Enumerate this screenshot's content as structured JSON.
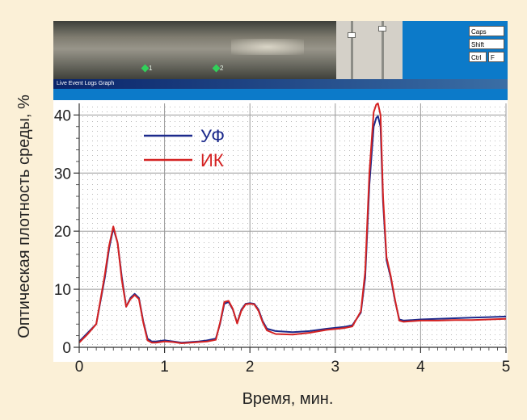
{
  "screen": {
    "window_title": "Live Event Logs Graph",
    "markers": [
      "1",
      "2"
    ],
    "keys": [
      "Caps",
      "Shift",
      "Ctrl",
      "F"
    ]
  },
  "chart_data": {
    "type": "line",
    "xlabel": "Время, мин.",
    "ylabel": "Оптическая плотность среды, %",
    "xlim": [
      0,
      5
    ],
    "ylim": [
      0,
      42
    ],
    "xticks": [
      "0",
      "1",
      "2",
      "3",
      "4",
      "5"
    ],
    "yticks": [
      "0",
      "10",
      "20",
      "30",
      "40"
    ],
    "grid": true,
    "legend_position": "top-left",
    "series": [
      {
        "name": "УФ",
        "color": "#1c2a8c",
        "x": [
          0,
          0.1,
          0.2,
          0.3,
          0.35,
          0.4,
          0.45,
          0.5,
          0.55,
          0.6,
          0.65,
          0.7,
          0.75,
          0.8,
          0.85,
          0.9,
          1.0,
          1.1,
          1.2,
          1.3,
          1.4,
          1.5,
          1.6,
          1.65,
          1.7,
          1.75,
          1.8,
          1.85,
          1.9,
          1.95,
          2.0,
          2.05,
          2.1,
          2.15,
          2.2,
          2.3,
          2.5,
          2.7,
          2.9,
          3.1,
          3.2,
          3.3,
          3.35,
          3.4,
          3.45,
          3.48,
          3.5,
          3.53,
          3.56,
          3.6,
          3.65,
          3.7,
          3.75,
          3.8,
          3.9,
          4.0,
          4.2,
          4.4,
          4.6,
          4.8,
          5.0
        ],
        "values": [
          1,
          2.5,
          4,
          12,
          17,
          20.5,
          18,
          12,
          7,
          8.5,
          9.2,
          8.5,
          4.5,
          1.5,
          1,
          1,
          1.2,
          1,
          0.8,
          0.9,
          1,
          1.2,
          1.5,
          4,
          7.5,
          7.8,
          6.5,
          4.2,
          6.5,
          7.5,
          7.6,
          7.5,
          6.5,
          4.5,
          3.2,
          2.8,
          2.6,
          2.8,
          3.2,
          3.5,
          3.8,
          6,
          12,
          28,
          38,
          39.5,
          39.8,
          38,
          25,
          15,
          12,
          8,
          4.8,
          4.6,
          4.7,
          4.8,
          4.9,
          5,
          5.1,
          5.2,
          5.3
        ]
      },
      {
        "name": "ИК",
        "color": "#d42222",
        "x": [
          0,
          0.1,
          0.2,
          0.3,
          0.35,
          0.4,
          0.45,
          0.5,
          0.55,
          0.6,
          0.65,
          0.7,
          0.75,
          0.8,
          0.85,
          0.9,
          1.0,
          1.1,
          1.2,
          1.3,
          1.4,
          1.5,
          1.6,
          1.65,
          1.7,
          1.75,
          1.8,
          1.85,
          1.9,
          1.95,
          2.0,
          2.05,
          2.1,
          2.15,
          2.2,
          2.3,
          2.5,
          2.7,
          2.9,
          3.1,
          3.2,
          3.3,
          3.35,
          3.4,
          3.45,
          3.48,
          3.5,
          3.53,
          3.56,
          3.6,
          3.65,
          3.7,
          3.75,
          3.8,
          3.9,
          4.0,
          4.2,
          4.4,
          4.6,
          4.8,
          5.0
        ],
        "values": [
          0.8,
          2.3,
          4,
          12.5,
          17.5,
          20.8,
          18,
          11.5,
          7,
          8.3,
          9,
          8.3,
          4.3,
          1.2,
          0.8,
          0.8,
          1,
          0.9,
          0.7,
          0.8,
          0.9,
          1,
          1.3,
          4.2,
          7.8,
          8,
          6.6,
          4.1,
          6.3,
          7.4,
          7.5,
          7.4,
          6.3,
          4.3,
          2.9,
          2.3,
          2.2,
          2.5,
          3,
          3.3,
          3.6,
          6.2,
          13,
          30,
          40.5,
          41.8,
          42,
          40,
          26,
          15.5,
          12.3,
          8.2,
          4.6,
          4.4,
          4.5,
          4.6,
          4.6,
          4.7,
          4.7,
          4.8,
          4.9
        ]
      }
    ]
  }
}
